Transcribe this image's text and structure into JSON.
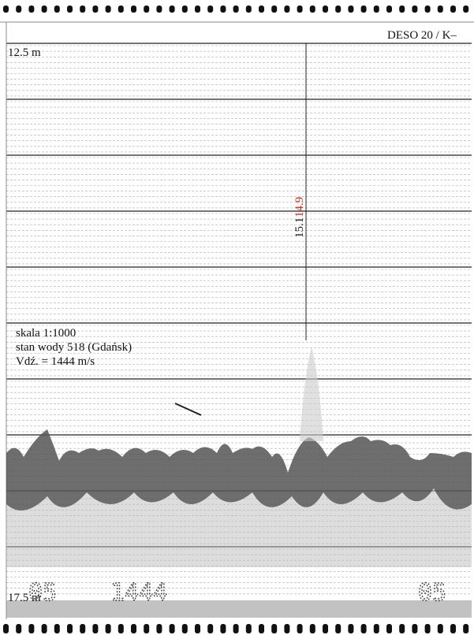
{
  "header": {
    "title": "DESO 20 / K–"
  },
  "depth_top": "12.5 m",
  "depth_bottom": "17.5 m",
  "marker": {
    "left": "15.1",
    "right": "14.9"
  },
  "notes": [
    "skala 1:1000",
    "stan wody 518 (Gdańsk)",
    "Vdź. = 1444 m/s"
  ],
  "print": [
    "05",
    "1444",
    "05"
  ]
}
